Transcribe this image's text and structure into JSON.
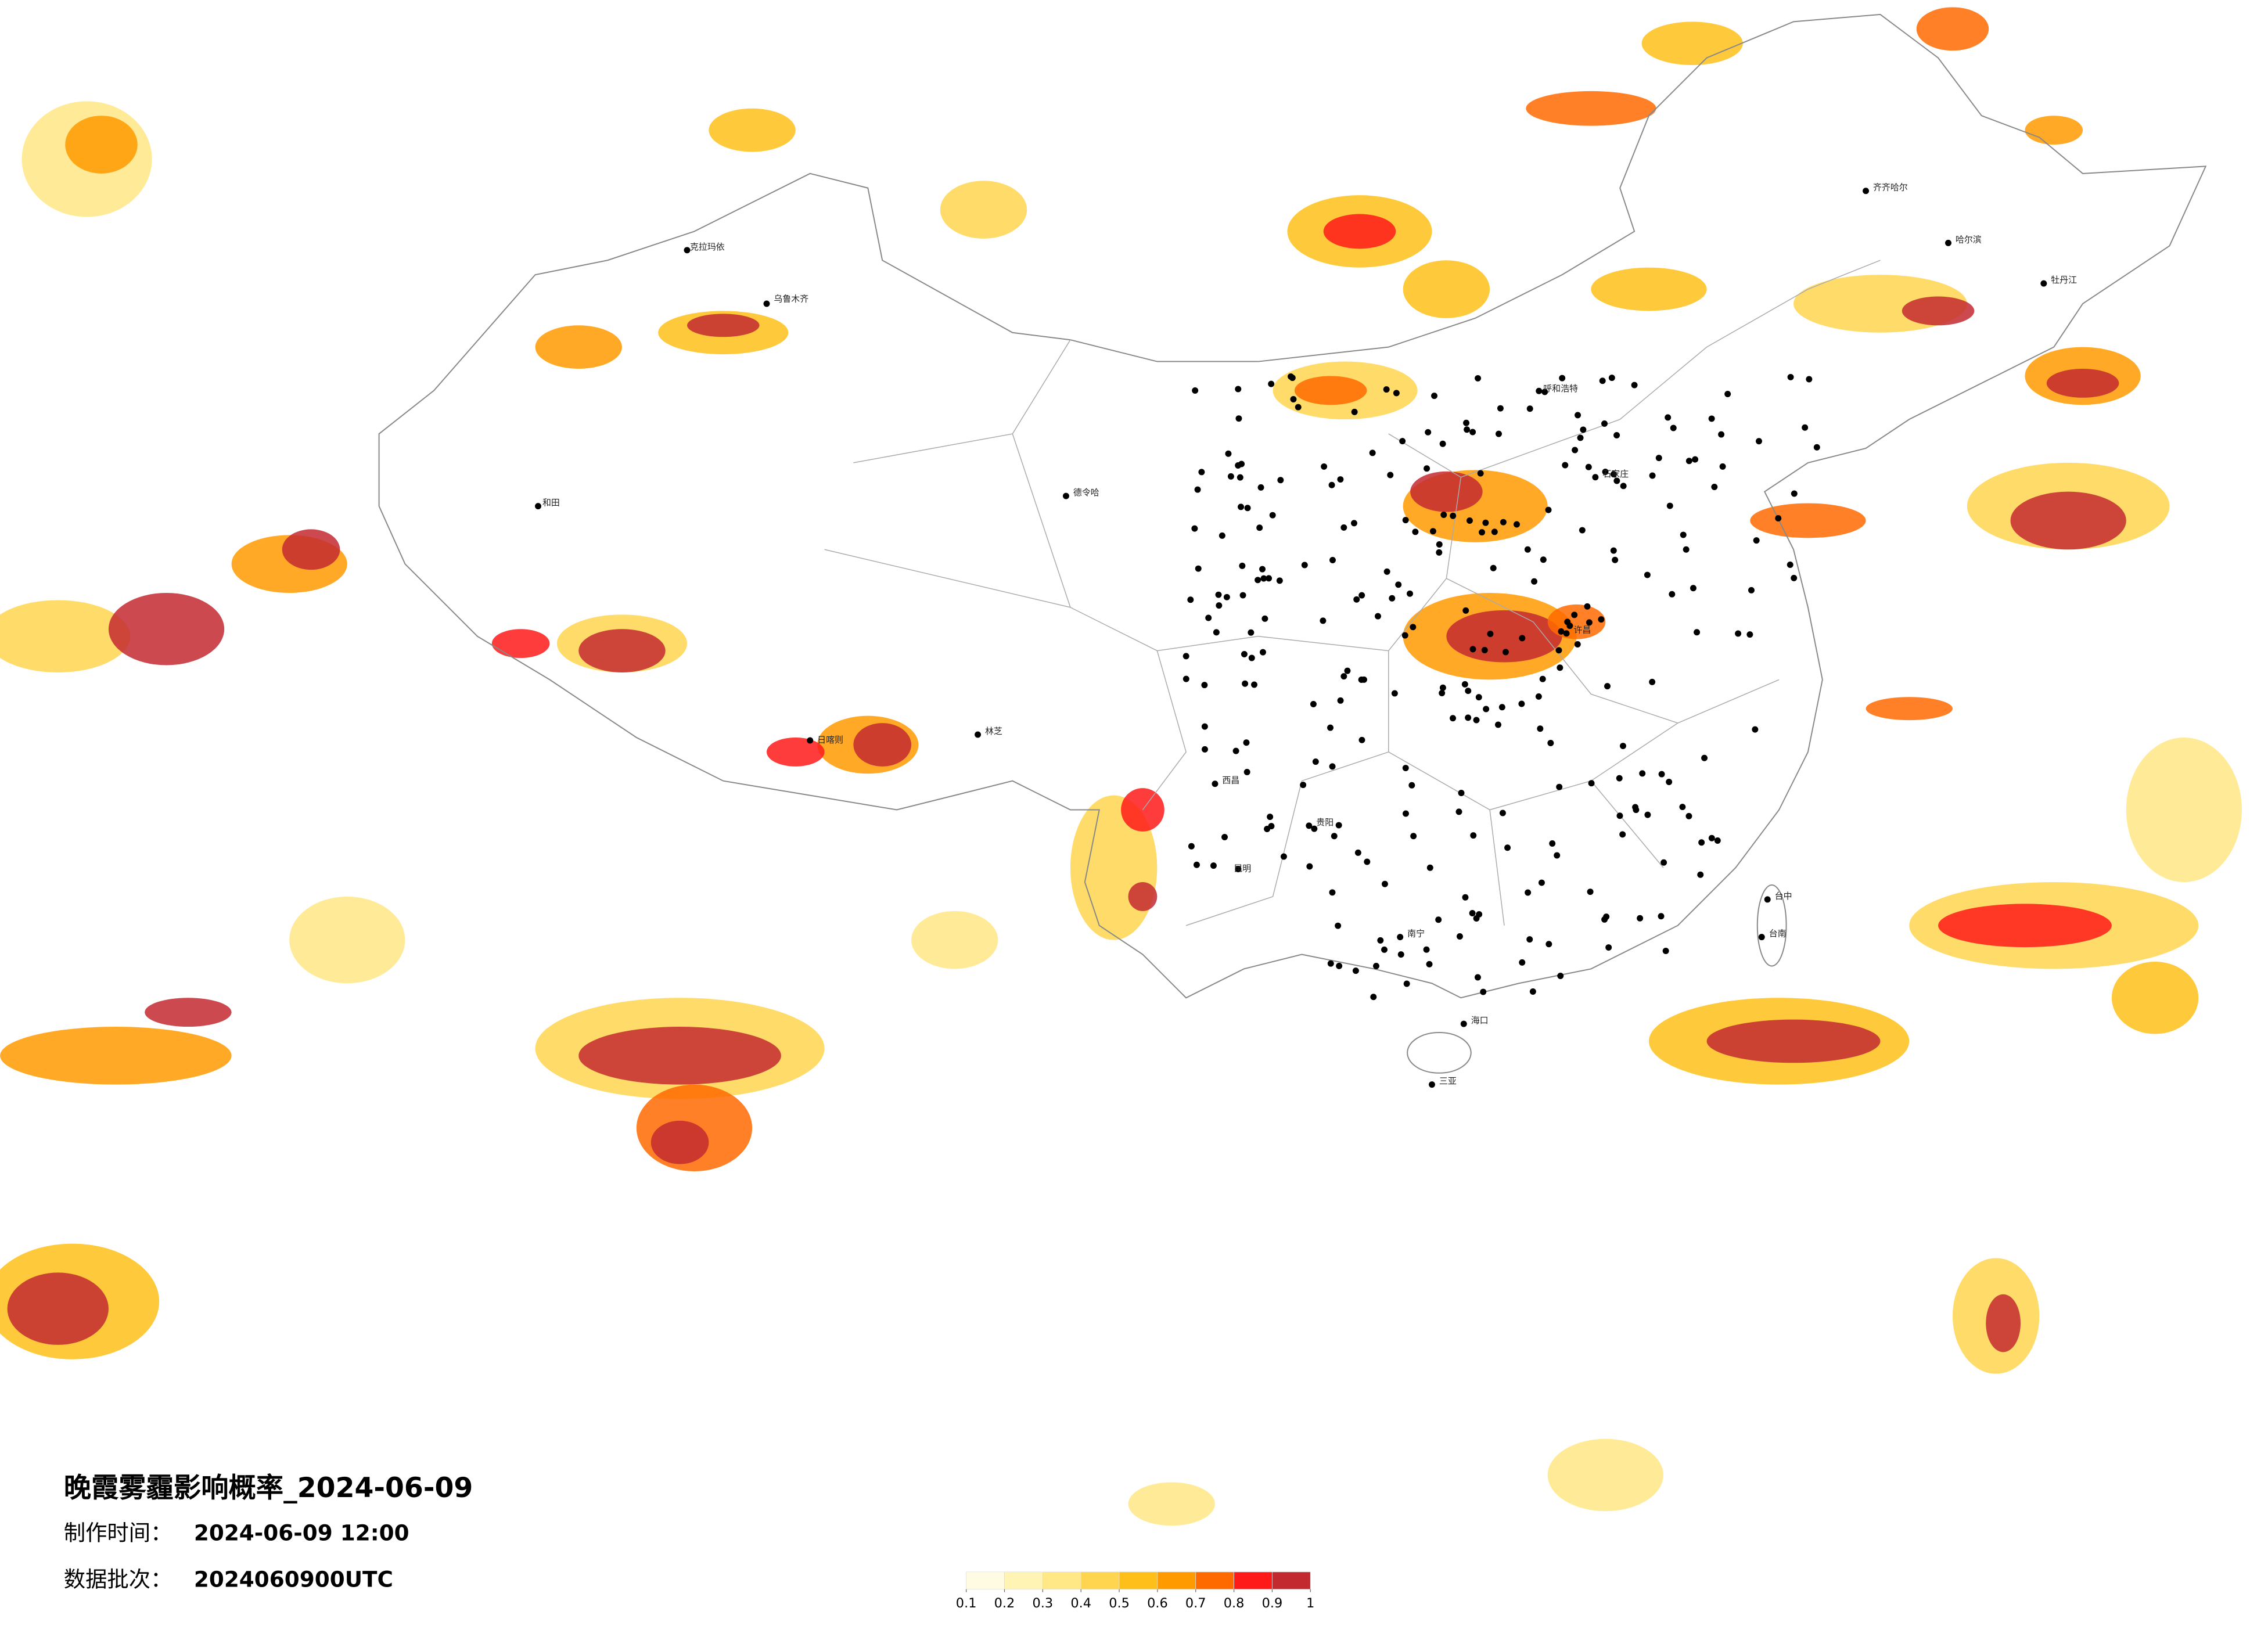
{
  "header": {
    "title": "晚霞雾霾影响概率_2024-06-09",
    "make_time_label": "制作时间：",
    "make_time": "2024-06-09 12:00",
    "batch_label": "数据批次：",
    "batch": "2024060900UTC"
  },
  "colorbar": {
    "colors": [
      "#fffbe3",
      "#fff4b3",
      "#ffe885",
      "#ffd54f",
      "#ffbf1a",
      "#ff9a00",
      "#ff6a00",
      "#ff1a1a",
      "#c32a30"
    ],
    "ticks": [
      0.1,
      0.2,
      0.3,
      0.4,
      0.5,
      0.6,
      0.7,
      0.8,
      0.9,
      1
    ]
  },
  "cities": [
    "乌鲁木齐",
    "克拉玛依",
    "和田",
    "日喀则",
    "林芝",
    "西昌",
    "呼和浩特",
    "石家庄",
    "齐齐哈尔",
    "哈尔滨",
    "牡丹江",
    "南宁",
    "海口",
    "三亚",
    "台中",
    "台南",
    "贵阳",
    "昆明",
    "许昌",
    "德令哈"
  ]
}
